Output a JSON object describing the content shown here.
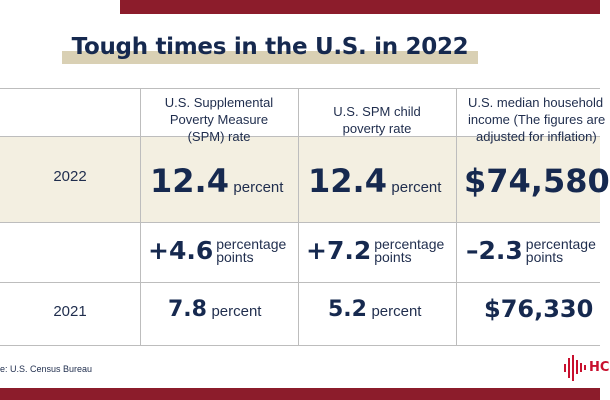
{
  "title": "Tough times in the U.S. in 2022",
  "colors": {
    "navy": "#16294f",
    "maroon": "#8c1c2b",
    "tan": "#d9d0b4",
    "row_highlight": "#f3efe1",
    "logo_red": "#c8102e"
  },
  "columns": [
    {
      "line1": "U.S. Supplemental",
      "line2": "Poverty Measure",
      "line3": "(SPM) rate"
    },
    {
      "line1": "U.S. SPM child",
      "line2": "poverty rate"
    },
    {
      "line1": "U.S. median household",
      "line2": "income (The figures are",
      "line3": "adjusted for inflation)"
    }
  ],
  "rows": {
    "y2022": {
      "year": "2022",
      "spm": {
        "num": "12.4",
        "unit": "percent"
      },
      "child": {
        "num": "12.4",
        "unit": "percent"
      },
      "income": {
        "num": "$74,580"
      }
    },
    "change": {
      "spm": {
        "num": "+4.6",
        "unit1": "percentage",
        "unit2": "points"
      },
      "child": {
        "num": "+7.2",
        "unit1": "percentage",
        "unit2": "points"
      },
      "income": {
        "num": "–2.3",
        "unit1": "percentage",
        "unit2": "points"
      }
    },
    "y2021": {
      "year": "2021",
      "spm": {
        "num": "7.8",
        "unit": "percent"
      },
      "child": {
        "num": "5.2",
        "unit": "percent"
      },
      "income": {
        "num": "$76,330"
      }
    }
  },
  "source": "e: U.S. Census Bureau",
  "logo": {
    "icon": "bar-wave-logo-icon",
    "text": "HC"
  }
}
